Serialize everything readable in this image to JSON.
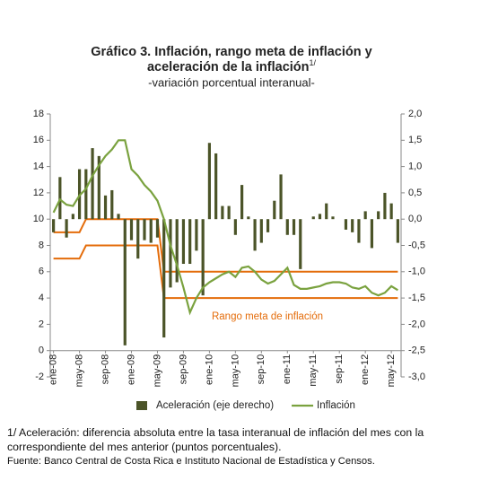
{
  "chart_data": {
    "type": "combo",
    "title": [
      "Gráfico 3. Inflación, rango meta de inflación y",
      "aceleración de la inflación"
    ],
    "title_mark": "1/",
    "subtitle": "-variación porcentual interanual-",
    "categories": [
      "ene-08",
      null,
      null,
      null,
      "may-08",
      null,
      null,
      null,
      "sep-08",
      null,
      null,
      null,
      "ene-09",
      null,
      null,
      null,
      "may-09",
      null,
      null,
      null,
      "sep-09",
      null,
      null,
      null,
      "ene-10",
      null,
      null,
      null,
      "may-10",
      null,
      null,
      null,
      "sep-10",
      null,
      null,
      null,
      "ene-11",
      null,
      null,
      null,
      "may-11",
      null,
      null,
      null,
      "sep-11",
      null,
      null,
      null,
      "ene-12",
      null,
      null,
      null,
      "may-12",
      null
    ],
    "ylim": [
      -2,
      18
    ],
    "yticks": [
      -2,
      0,
      2,
      4,
      6,
      8,
      10,
      12,
      14,
      16,
      18
    ],
    "y2lim": [
      -3,
      2
    ],
    "y2ticks": [
      {
        "value": -3,
        "label": "-3,0"
      },
      {
        "value": -2.5,
        "label": "-2,5"
      },
      {
        "value": -2,
        "label": "-2,0"
      },
      {
        "value": -1.5,
        "label": "-1,5"
      },
      {
        "value": -1,
        "label": "-1,0"
      },
      {
        "value": -0.5,
        "label": "-0,5"
      },
      {
        "value": 0,
        "label": "0,0"
      },
      {
        "value": 0.5,
        "label": "0,5"
      },
      {
        "value": 1,
        "label": "1,0"
      },
      {
        "value": 1.5,
        "label": "1,5"
      },
      {
        "value": 2,
        "label": "2,0"
      }
    ],
    "series": [
      {
        "name": "Aceleración (eje derecho)",
        "type": "bar",
        "axis": "y2",
        "color": "#4b5428",
        "values": [
          -0.25,
          0.8,
          -0.35,
          0.1,
          0.95,
          0.95,
          1.35,
          1.2,
          0.45,
          0.55,
          0.1,
          -2.4,
          -0.4,
          -0.75,
          -0.4,
          -0.45,
          -0.35,
          -2.25,
          -1.3,
          -1.2,
          -0.85,
          -0.85,
          -0.6,
          -1.45,
          1.45,
          1.25,
          0.25,
          0.25,
          -0.3,
          0.65,
          0.05,
          -0.6,
          -0.45,
          -0.25,
          0.35,
          0.85,
          -0.3,
          -0.3,
          -0.95,
          0.0,
          0.05,
          0.1,
          0.3,
          0.05,
          0.0,
          -0.2,
          -0.25,
          -0.45,
          0.15,
          -0.55,
          0.15,
          0.5,
          0.3,
          -0.45
        ]
      },
      {
        "name": "Inflación",
        "type": "line",
        "color": "#7aa23f",
        "values": [
          10.5,
          11.5,
          11.1,
          11.0,
          11.8,
          12.3,
          13.3,
          14.1,
          14.8,
          15.3,
          16.0,
          16.0,
          13.8,
          13.3,
          12.6,
          12.1,
          11.4,
          10.0,
          8.0,
          6.5,
          4.8,
          2.9,
          4.0,
          4.8,
          5.2,
          5.5,
          5.8,
          6.0,
          5.6,
          6.3,
          6.4,
          6.0,
          5.4,
          5.1,
          5.3,
          5.8,
          6.3,
          5.0,
          4.7,
          4.7,
          4.8,
          4.9,
          5.1,
          5.2,
          5.2,
          5.1,
          4.8,
          4.7,
          4.9,
          4.4,
          4.2,
          4.4,
          4.9,
          4.6
        ]
      }
    ],
    "target_range": {
      "label": "Rango meta de inflación",
      "color": "#e46c0a",
      "upper": [
        9,
        9,
        9,
        9,
        9,
        10,
        10,
        10,
        10,
        10,
        10,
        10,
        10,
        10,
        10,
        10,
        10,
        6,
        6,
        6,
        6,
        6,
        6,
        6,
        6,
        6,
        6,
        6,
        6,
        6,
        6,
        6,
        6,
        6,
        6,
        6,
        6,
        6,
        6,
        6,
        6,
        6,
        6,
        6,
        6,
        6,
        6,
        6,
        6,
        6,
        6,
        6,
        6,
        6
      ],
      "lower": [
        7,
        7,
        7,
        7,
        7,
        8,
        8,
        8,
        8,
        8,
        8,
        8,
        8,
        8,
        8,
        8,
        8,
        4,
        4,
        4,
        4,
        4,
        4,
        4,
        4,
        4,
        4,
        4,
        4,
        4,
        4,
        4,
        4,
        4,
        4,
        4,
        4,
        4,
        4,
        4,
        4,
        4,
        4,
        4,
        4,
        4,
        4,
        4,
        4,
        4,
        4,
        4,
        4,
        4
      ]
    },
    "note": "1/ Aceleración: diferencia absoluta entre la tasa interanual de inflación del mes con la correspondiente del mes anterior (puntos porcentuales).",
    "source": "Fuente: Banco Central de Costa Rica e Instituto Nacional de Estadística y Censos."
  }
}
